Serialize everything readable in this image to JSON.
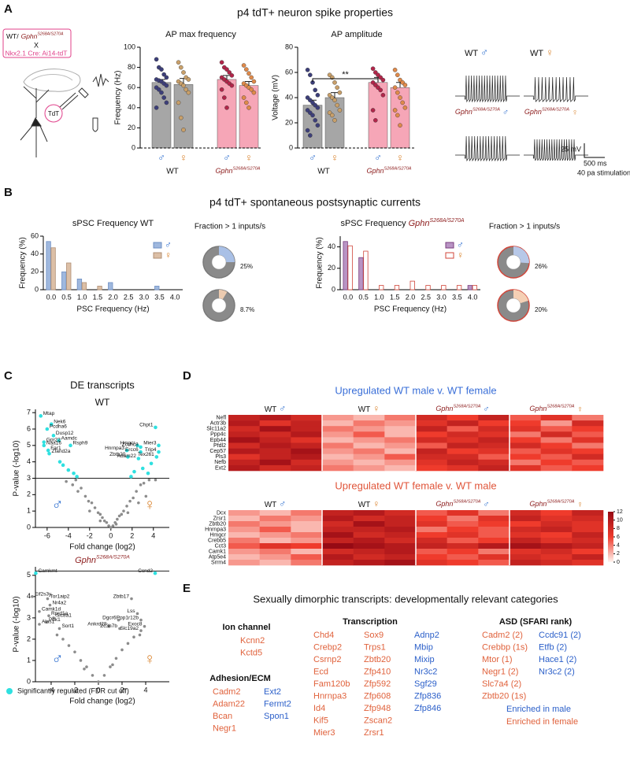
{
  "panel_labels": [
    "A",
    "B",
    "C",
    "D",
    "E"
  ],
  "wt": "WT",
  "genotype": {
    "gene": "Gphn",
    "allele": "S268A/S270A"
  },
  "sexes": [
    "♂",
    "♀"
  ],
  "sex_colors": [
    "#2f6fcf",
    "#d9822b"
  ],
  "genotype_color": "#8b1a1a",
  "panel_a": {
    "title": "p4 tdT+ neuron spike properties",
    "cross": {
      "top": "WT/",
      "x": "X",
      "bottom": "Nkx2.1 Cre: Ai14-tdT"
    },
    "tdt": "TdT",
    "scale_mv": "25 mV",
    "scale_ms": "500 ms",
    "stimulation": "40 pa stimulation"
  },
  "panel_b": {
    "title": "p4 tdT+ spontaneous postsynaptic currents"
  },
  "panel_c": {
    "title": "DE transcripts",
    "legend": "Significantly regulated (FDR cut off)",
    "legend_color": "#2fe0e0"
  },
  "chart_data": [
    {
      "type": "bar",
      "title": "AP max frequency",
      "ylabel": "Frequency (Hz)",
      "categories": [
        "♂",
        "♀",
        "♂",
        "♀"
      ],
      "category_colors": [
        "#2f6fcf",
        "#d9822b",
        "#2f6fcf",
        "#d9822b"
      ],
      "values": [
        65,
        63,
        68,
        62
      ],
      "errors": [
        3,
        6,
        4,
        4
      ],
      "colors": [
        "#a6a6a6",
        "#a6a6a6",
        "#f6a6b7",
        "#f6a6b7"
      ],
      "point_colors": [
        "#3d3f7a",
        "#c9a06a",
        "#b2264a",
        "#e08a4a"
      ],
      "points": [
        [
          88,
          80,
          78,
          73,
          70,
          68,
          67,
          66,
          64,
          62,
          60,
          58,
          55,
          50,
          45,
          40
        ],
        [
          85,
          80,
          75,
          70,
          68,
          66,
          64,
          62,
          58,
          55,
          45,
          30,
          18
        ],
        [
          85,
          80,
          78,
          75,
          72,
          70,
          68,
          66,
          64,
          62,
          58,
          50,
          40
        ],
        [
          82,
          78,
          74,
          70,
          66,
          64,
          62,
          60,
          58,
          55,
          50,
          45,
          40
        ]
      ],
      "ylim": [
        0,
        100
      ],
      "yticks": [
        0,
        20,
        40,
        60,
        80,
        100
      ]
    },
    {
      "type": "bar",
      "title": "AP amplitude",
      "ylabel": "Voltage (mV)",
      "categories": [
        "♂",
        "♀",
        "♂",
        "♀"
      ],
      "category_colors": [
        "#2f6fcf",
        "#d9822b",
        "#2f6fcf",
        "#d9822b"
      ],
      "values": [
        34,
        40,
        52,
        48
      ],
      "errors": [
        4,
        4,
        4,
        4
      ],
      "colors": [
        "#a6a6a6",
        "#a6a6a6",
        "#f6a6b7",
        "#f6a6b7"
      ],
      "point_colors": [
        "#3d3f7a",
        "#c9a06a",
        "#b2264a",
        "#e08a4a"
      ],
      "points": [
        [
          62,
          58,
          52,
          46,
          42,
          40,
          38,
          36,
          34,
          32,
          30,
          28,
          26,
          22,
          18,
          14,
          10
        ],
        [
          58,
          56,
          52,
          48,
          44,
          42,
          40,
          38,
          34,
          30,
          28,
          26,
          22
        ],
        [
          63,
          60,
          58,
          56,
          54,
          52,
          50,
          48,
          46,
          42,
          30,
          22
        ],
        [
          62,
          58,
          54,
          52,
          50,
          48,
          44,
          40,
          36,
          32,
          30,
          26,
          18
        ]
      ],
      "annotation": "**",
      "annotation_span": [
        0,
        2
      ],
      "ylim": [
        0,
        80
      ],
      "yticks": [
        0,
        20,
        40,
        60,
        80
      ]
    },
    {
      "type": "histogram",
      "title": "sPSC Frequency WT",
      "xlabel": "PSC Frequency (Hz)",
      "ylabel": "Frequency (%)",
      "categories": [
        "0.0",
        "0.5",
        "1.0",
        "1.5",
        "2.0",
        "2.5",
        "3.0",
        "3.5",
        "4.0"
      ],
      "series": [
        {
          "name": "♂",
          "color": "#9fb8de",
          "stroke": "#6e8fc4",
          "values": [
            54,
            20,
            12,
            0,
            8,
            0,
            0,
            4,
            0
          ]
        },
        {
          "name": "♀",
          "color": "#dcbfa6",
          "stroke": "#b08f74",
          "values": [
            47,
            30,
            8,
            4,
            0,
            0,
            0,
            0,
            0
          ]
        }
      ],
      "ylim": [
        0,
        60
      ],
      "yticks": [
        0,
        20,
        40,
        60
      ],
      "fractions": {
        "title": "Fraction > 1 inputs/s",
        "values": [
          25,
          8.7
        ],
        "value_labels": [
          "25%",
          "8.7%"
        ],
        "colors": [
          "#a9c0e6",
          "#eccbb0"
        ],
        "ring": "#7a7a7a"
      }
    },
    {
      "type": "histogram",
      "title": "sPSC Frequency",
      "xlabel": "PSC Frequency (Hz)",
      "ylabel": "Frequency (%)",
      "categories": [
        "0.0",
        "0.5",
        "1.0",
        "1.5",
        "2.0",
        "2.5",
        "3.0",
        "3.5",
        "4.0"
      ],
      "series": [
        {
          "name": "♂",
          "color": "#b894c4",
          "stroke": "#7a3d7e",
          "values": [
            45,
            30,
            0,
            0,
            0,
            0,
            0,
            0,
            4
          ]
        },
        {
          "name": "♀",
          "color": "#ffffff",
          "stroke": "#d0463a",
          "values": [
            41,
            36,
            4,
            4,
            8,
            4,
            4,
            4,
            4
          ]
        }
      ],
      "ylim": [
        0,
        50
      ],
      "yticks": [
        0,
        20,
        40
      ],
      "fractions": {
        "title": "Fraction > 1 inputs/s",
        "values": [
          26,
          20
        ],
        "value_labels": [
          "26%",
          "20%"
        ],
        "colors": [
          "#b7c8e8",
          "#f5d0b5"
        ],
        "ring": "#d0463a"
      }
    },
    {
      "type": "scatter",
      "title": "WT",
      "xlabel": "Fold change (log2)",
      "ylabel": "P-value (-log10)",
      "xlim": [
        -7.1,
        5.5
      ],
      "ylim": [
        0,
        7.2
      ],
      "xticks": [
        -6,
        -4,
        -2,
        0,
        2,
        4
      ],
      "yticks": [
        0,
        1,
        2,
        3,
        4,
        5,
        6,
        7
      ],
      "cutoff": 3,
      "points": {
        "color": "#8c8c8c",
        "x": [
          -4.2,
          -3.6,
          -3.1,
          -2.8,
          -2.4,
          -2.1,
          -1.8,
          -1.5,
          -1.2,
          -1.0,
          -0.8,
          -0.6,
          -0.4,
          -0.2,
          0,
          0.2,
          0.4,
          0.6,
          0.8,
          1.0,
          1.2,
          1.5,
          1.8,
          2.1,
          2.4,
          2.8,
          3.1,
          3.6,
          4.2,
          -2.0,
          -1.0,
          0.5,
          1.6,
          2.6,
          -3.3,
          3.3
        ],
        "y": [
          2.8,
          2.6,
          2.2,
          2.4,
          1.9,
          1.6,
          1.5,
          1.2,
          0.9,
          0.8,
          0.6,
          0.4,
          0.3,
          0.1,
          0.0,
          0.1,
          0.3,
          0.5,
          0.7,
          0.8,
          1.0,
          1.3,
          1.6,
          1.8,
          2.2,
          2.6,
          2.7,
          2.9,
          2.9,
          1.0,
          0.4,
          0.2,
          0.9,
          1.5,
          2.9,
          1.9
        ],
        "labels": [
          null,
          null,
          null,
          null,
          null,
          null,
          null,
          null,
          null,
          null,
          null,
          null,
          null,
          null,
          null,
          null,
          null,
          null,
          null,
          null,
          null,
          null,
          null,
          null,
          null,
          null,
          null,
          null,
          null,
          null,
          null,
          null,
          null,
          null,
          null,
          null
        ]
      },
      "significant": {
        "color": "#2fe0e0",
        "x": [
          -6.6,
          -5.6,
          -6.0,
          -5.4,
          -6.3,
          -4.9,
          -6.3,
          -3.8,
          -5.9,
          -5.8,
          -4.5,
          -4.0,
          -3.5,
          -3.2,
          -4.8,
          4.2,
          2.5,
          2.8,
          4.5,
          1.5,
          2.8,
          4.5,
          1.6,
          2.6,
          4.3,
          3.0,
          3.5,
          2.2,
          1.9,
          3.8
        ],
        "y": [
          6.8,
          6.3,
          6.0,
          5.6,
          5.2,
          5.3,
          5.0,
          5.0,
          4.7,
          4.5,
          3.8,
          3.5,
          3.3,
          3.1,
          4.0,
          6.1,
          5.0,
          4.9,
          5.0,
          4.7,
          4.6,
          4.6,
          4.3,
          4.2,
          4.3,
          3.6,
          3.3,
          3.4,
          3.1,
          3.9
        ],
        "labels": [
          "Mtap",
          "Nek6",
          "Pcdha6",
          "Dusp12",
          "Gpr22",
          "Aamdc",
          "Naa16",
          "Rsph9",
          "Far1",
          "Zfand2a",
          null,
          null,
          null,
          null,
          null,
          "Chpt1",
          "Hmgcr",
          "Zcchc8",
          "Mier3",
          "Hnrnpa3",
          "Ercc6",
          "Trip4",
          "Zbtb20",
          "Adam22",
          "Tex261",
          null,
          null,
          null,
          null,
          null
        ]
      }
    },
    {
      "type": "scatter",
      "xlabel": "Fold change (log2)",
      "ylabel": "P-value (-log10)",
      "xlim": [
        -5.33,
        6
      ],
      "ylim": [
        0,
        5.4
      ],
      "xticks": [
        -4,
        -2,
        0,
        2,
        4
      ],
      "yticks": [
        0,
        1,
        2,
        3,
        4,
        5
      ],
      "cutoff": 5.2,
      "points": {
        "color": "#8c8c8c",
        "x": [
          -5.6,
          -4.3,
          -4.1,
          -5.0,
          -4.2,
          -3.8,
          -5.0,
          -4.4,
          -3.3,
          2.8,
          3.3,
          1.7,
          3.6,
          0.9,
          1.8,
          3.9,
          3.6,
          -3,
          -2.5,
          -2,
          -1.5,
          -1,
          -0.5,
          0,
          0.5,
          1,
          1.5,
          2,
          2.5,
          3,
          -3.5,
          3.5,
          -1.2,
          1.2
        ],
        "y": [
          4.0,
          3.9,
          3.6,
          3.3,
          3.1,
          3.0,
          2.7,
          2.8,
          2.5,
          3.9,
          3.2,
          2.9,
          2.9,
          2.6,
          2.5,
          2.6,
          2.4,
          2.0,
          1.7,
          1.4,
          1.0,
          0.7,
          0.3,
          0.0,
          0.3,
          0.7,
          1.1,
          1.5,
          1.8,
          2.1,
          2.2,
          2.2,
          0.6,
          0.8
        ],
        "labels": [
          "Eif2s3y",
          "Tor1aip2",
          "Nr4a2",
          "Camk1d",
          "Rprd1a",
          "Slc8a1",
          "Alas1",
          "Pdk1",
          "Sort1",
          "Zbtb17",
          "Lss",
          "Dgcr6",
          "Ppp1r12b",
          "Ankrd28",
          "Zc3h7b",
          "Exoc8",
          "Slc19a2",
          null,
          null,
          null,
          null,
          null,
          null,
          null,
          null,
          null,
          null,
          null,
          null,
          null,
          null,
          null,
          null,
          null
        ]
      },
      "significant": {
        "color": "#2fe0e0",
        "x": [
          -5.3,
          4.8
        ],
        "y": [
          5.1,
          5.1
        ],
        "labels": [
          "Camkmt",
          "Ccnd2"
        ]
      }
    },
    {
      "type": "heatmap",
      "title": "Upregulated WT male v. WT female",
      "title_color": "#3a6fd8",
      "zlim": [
        0,
        12
      ],
      "rows": [
        "Nefl",
        "Actr3b",
        "Slc11a2",
        "Ppp4c",
        "Epb44",
        "Pfdl2",
        "Cep57",
        "Pls3",
        "Nefb",
        "Ext2"
      ],
      "values": [
        [
          9,
          10,
          8,
          3,
          2,
          4,
          8,
          6,
          9,
          5,
          7,
          4
        ],
        [
          10,
          7,
          9,
          2,
          4,
          3,
          7,
          9,
          6,
          6,
          3,
          8
        ],
        [
          8,
          11,
          9,
          4,
          3,
          2,
          9,
          5,
          8,
          7,
          5,
          6
        ],
        [
          9,
          8,
          10,
          3,
          5,
          2,
          6,
          8,
          7,
          4,
          8,
          5
        ],
        [
          11,
          9,
          7,
          2,
          3,
          4,
          8,
          7,
          9,
          6,
          4,
          7
        ],
        [
          8,
          10,
          9,
          4,
          2,
          3,
          5,
          9,
          8,
          8,
          6,
          4
        ],
        [
          10,
          9,
          11,
          3,
          4,
          2,
          9,
          6,
          7,
          5,
          7,
          6
        ],
        [
          7,
          9,
          10,
          2,
          3,
          5,
          8,
          8,
          5,
          6,
          5,
          8
        ],
        [
          9,
          11,
          8,
          3,
          2,
          3,
          7,
          9,
          8,
          4,
          6,
          5
        ],
        [
          10,
          8,
          9,
          4,
          3,
          2,
          6,
          7,
          9,
          7,
          5,
          6
        ]
      ]
    },
    {
      "type": "heatmap",
      "title": "Upregulated WT female v. WT male",
      "title_color": "#e0553a",
      "zlim": [
        0,
        12
      ],
      "colorbar_ticks": [
        0,
        2,
        4,
        6,
        8,
        10,
        12
      ],
      "rows": [
        "Dcx",
        "Zrsr1",
        "Zbtb20",
        "Hnrnpa3",
        "Hmgcr",
        "Crebb5",
        "Cct3",
        "Camk1",
        "Atp5e4",
        "Srrm4"
      ],
      "values": [
        [
          3,
          2,
          4,
          9,
          10,
          8,
          5,
          7,
          4,
          8,
          6,
          9
        ],
        [
          2,
          4,
          3,
          10,
          8,
          9,
          6,
          4,
          7,
          9,
          7,
          8
        ],
        [
          4,
          3,
          2,
          8,
          11,
          9,
          7,
          5,
          6,
          6,
          8,
          7
        ],
        [
          3,
          5,
          2,
          9,
          9,
          10,
          4,
          6,
          5,
          8,
          9,
          7
        ],
        [
          2,
          3,
          4,
          11,
          8,
          9,
          6,
          7,
          5,
          7,
          6,
          9
        ],
        [
          4,
          2,
          3,
          9,
          10,
          8,
          8,
          5,
          6,
          9,
          7,
          8
        ],
        [
          5,
          7,
          6,
          12,
          11,
          10,
          9,
          8,
          10,
          11,
          10,
          9
        ],
        [
          3,
          4,
          2,
          8,
          9,
          10,
          5,
          6,
          4,
          7,
          8,
          6
        ],
        [
          2,
          3,
          5,
          10,
          8,
          9,
          6,
          5,
          7,
          8,
          7,
          9
        ],
        [
          3,
          2,
          4,
          9,
          10,
          11,
          7,
          6,
          5,
          9,
          8,
          7
        ]
      ]
    }
  ],
  "panel_e": {
    "title": "Sexually dimorphic transcripts: developmentally relevant categories",
    "groups": [
      {
        "title": "Ion channel",
        "columns": [
          {
            "color": "#e0623c",
            "genes": [
              "Kcnn2",
              "Kctd5"
            ]
          }
        ]
      },
      {
        "title": "Adhesion/ECM",
        "columns": [
          {
            "color": "#e0623c",
            "genes": [
              "Cadm2",
              "Adam22",
              "Bcan",
              "Negr1"
            ]
          },
          {
            "color": "#2b5fc9",
            "genes": [
              "Ext2",
              "Fermt2",
              "Spon1"
            ]
          }
        ]
      },
      {
        "title": "Transcription",
        "columns": [
          {
            "color": "#e0623c",
            "genes": [
              "Chd4",
              "Crebp2",
              "Csrnp2",
              "Ecd",
              "Fam120b",
              "Hnrnpa3",
              "Id4",
              "Kif5",
              "Mier3"
            ]
          },
          {
            "color": "#e0623c",
            "genes": [
              "Sox9",
              "Trps1",
              "Zbtb20",
              "Zfp410",
              "Zfp592",
              "Zfp608",
              "Zfp948",
              "Zscan2",
              "Zrsr1"
            ]
          },
          {
            "color": "#2b5fc9",
            "genes": [
              "Adnp2",
              "Mbip",
              "Mixip",
              "Nr3c2",
              "Sgf29",
              "Zfp836",
              "Zfp846"
            ]
          }
        ]
      },
      {
        "title": "ASD (SFARI rank)",
        "columns": [
          {
            "color": "#e0623c",
            "genes": [
              "Cadm2 (2)",
              "Crebbp (1s)",
              "Mtor (1)",
              "Negr1 (2)",
              "Slc7a4 (2)",
              "Zbtb20 (1s)"
            ]
          },
          {
            "color": "#2b5fc9",
            "genes": [
              "Ccdc91 (2)",
              "Etfb (2)",
              "Hace1 (2)",
              "Nr3c2 (2)"
            ]
          }
        ]
      }
    ],
    "legend": [
      {
        "text": "Enriched in male",
        "color": "#2b5fc9"
      },
      {
        "text": "Enriched in female",
        "color": "#e0623c"
      }
    ]
  }
}
